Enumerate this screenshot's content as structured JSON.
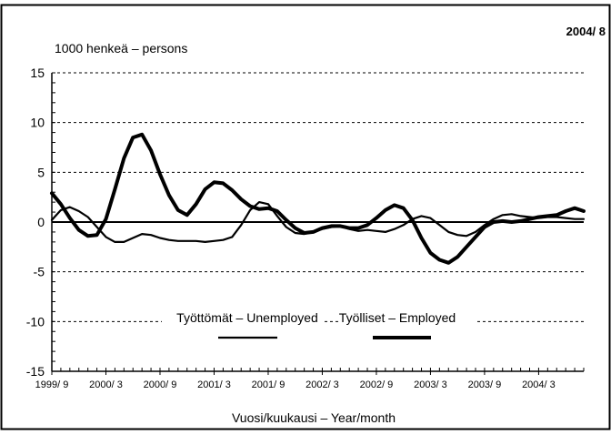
{
  "chart_data": {
    "type": "line",
    "date_stamp": "2004/ 8",
    "ylabel": "1000 henkeä – persons",
    "xlabel": "Vuosi/kuukausi – Year/month",
    "ylim": [
      -15,
      15
    ],
    "yticks": [
      -15,
      -10,
      -5,
      0,
      5,
      10,
      15
    ],
    "grid": "horizontal dashed",
    "legend_position": "bottom-center",
    "x_categories": [
      "1999/ 9",
      "2000/ 3",
      "2000/ 9",
      "2001/ 3",
      "2001/ 9",
      "2002/ 3",
      "2002/ 9",
      "2003/ 3",
      "2003/ 9",
      "2004/ 3"
    ],
    "x_range": [
      "1999/ 9",
      "2004/ 8"
    ],
    "series": [
      {
        "name": "Työttömät – Unemployed",
        "color": "#000000",
        "style": "thin",
        "x": [
          "1999/ 9",
          "1999/10",
          "1999/11",
          "1999/12",
          "2000/ 1",
          "2000/ 2",
          "2000/ 3",
          "2000/ 4",
          "2000/ 5",
          "2000/ 6",
          "2000/ 7",
          "2000/ 8",
          "2000/ 9",
          "2000/10",
          "2000/11",
          "2000/12",
          "2001/ 1",
          "2001/ 2",
          "2001/ 3",
          "2001/ 4",
          "2001/ 5",
          "2001/ 6",
          "2001/ 7",
          "2001/ 8",
          "2001/ 9",
          "2001/10",
          "2001/11",
          "2001/12",
          "2002/ 1",
          "2002/ 2",
          "2002/ 3",
          "2002/ 4",
          "2002/ 5",
          "2002/ 6",
          "2002/ 7",
          "2002/ 8",
          "2002/ 9",
          "2002/10",
          "2002/11",
          "2002/12",
          "2003/ 1",
          "2003/ 2",
          "2003/ 3",
          "2003/ 4",
          "2003/ 5",
          "2003/ 6",
          "2003/ 7",
          "2003/ 8",
          "2003/ 9",
          "2003/10",
          "2003/11",
          "2003/12",
          "2004/ 1",
          "2004/ 2",
          "2004/ 3",
          "2004/ 4",
          "2004/ 5",
          "2004/ 6",
          "2004/ 7",
          "2004/ 8"
        ],
        "values": [
          0.2,
          1.2,
          1.5,
          1.1,
          0.5,
          -0.5,
          -1.5,
          -2.0,
          -2.0,
          -1.6,
          -1.2,
          -1.3,
          -1.6,
          -1.8,
          -1.9,
          -1.9,
          -1.9,
          -2.0,
          -1.9,
          -1.8,
          -1.5,
          -0.3,
          1.2,
          2.0,
          1.8,
          0.6,
          -0.5,
          -1.1,
          -1.2,
          -1.0,
          -0.7,
          -0.5,
          -0.4,
          -0.7,
          -0.9,
          -0.8,
          -0.9,
          -1.0,
          -0.7,
          -0.3,
          0.3,
          0.6,
          0.4,
          -0.3,
          -1.0,
          -1.3,
          -1.4,
          -1.0,
          -0.3,
          0.3,
          0.7,
          0.8,
          0.6,
          0.5,
          0.4,
          0.5,
          0.5,
          0.4,
          0.3,
          0.3
        ]
      },
      {
        "name": "Työlliset – Employed",
        "color": "#000000",
        "style": "thick",
        "x": [
          "1999/ 9",
          "1999/10",
          "1999/11",
          "1999/12",
          "2000/ 1",
          "2000/ 2",
          "2000/ 3",
          "2000/ 4",
          "2000/ 5",
          "2000/ 6",
          "2000/ 7",
          "2000/ 8",
          "2000/ 9",
          "2000/10",
          "2000/11",
          "2000/12",
          "2001/ 1",
          "2001/ 2",
          "2001/ 3",
          "2001/ 4",
          "2001/ 5",
          "2001/ 6",
          "2001/ 7",
          "2001/ 8",
          "2001/ 9",
          "2001/10",
          "2001/11",
          "2001/12",
          "2002/ 1",
          "2002/ 2",
          "2002/ 3",
          "2002/ 4",
          "2002/ 5",
          "2002/ 6",
          "2002/ 7",
          "2002/ 8",
          "2002/ 9",
          "2002/10",
          "2002/11",
          "2002/12",
          "2003/ 1",
          "2003/ 2",
          "2003/ 3",
          "2003/ 4",
          "2003/ 5",
          "2003/ 6",
          "2003/ 7",
          "2003/ 8",
          "2003/ 9",
          "2003/10",
          "2003/11",
          "2003/12",
          "2004/ 1",
          "2004/ 2",
          "2004/ 3",
          "2004/ 4",
          "2004/ 5",
          "2004/ 6",
          "2004/ 7",
          "2004/ 8"
        ],
        "values": [
          2.9,
          1.8,
          0.4,
          -0.8,
          -1.4,
          -1.3,
          0.3,
          3.3,
          6.4,
          8.5,
          8.8,
          7.2,
          4.8,
          2.7,
          1.2,
          0.7,
          1.8,
          3.3,
          4.0,
          3.9,
          3.2,
          2.3,
          1.6,
          1.3,
          1.4,
          1.1,
          0.2,
          -0.6,
          -1.1,
          -1.0,
          -0.6,
          -0.4,
          -0.4,
          -0.6,
          -0.6,
          -0.3,
          0.4,
          1.2,
          1.7,
          1.4,
          0.2,
          -1.6,
          -3.1,
          -3.8,
          -4.1,
          -3.5,
          -2.5,
          -1.5,
          -0.5,
          0.0,
          0.1,
          0.0,
          0.1,
          0.3,
          0.5,
          0.6,
          0.7,
          1.1,
          1.4,
          1.1
        ]
      }
    ]
  }
}
